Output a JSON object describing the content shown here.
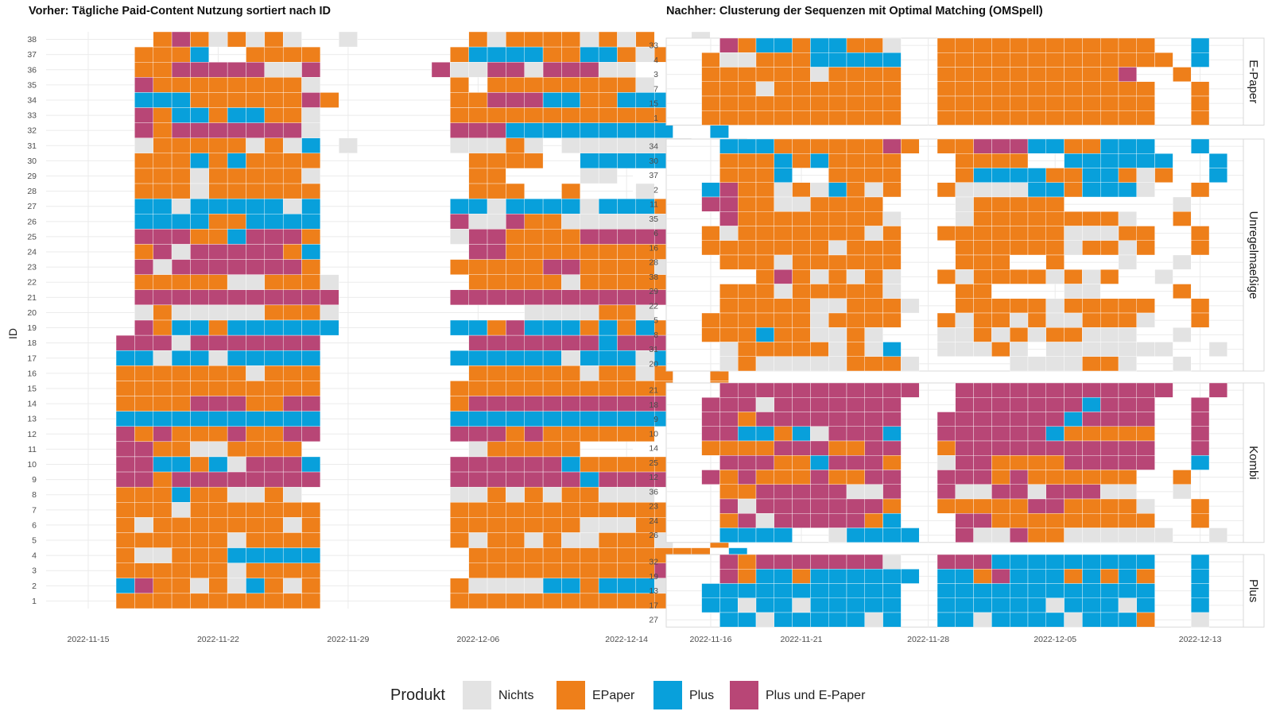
{
  "colors": {
    "nichts": "#e3e3e3",
    "epaper": "#ee7f1a",
    "plus": "#08a0db",
    "kombi": "#b84676",
    "grid": "#ebebeb",
    "panel_border": "#d9d9d9"
  },
  "legend": {
    "title": "Produkt",
    "items": [
      {
        "label": "Nichts",
        "code": "N"
      },
      {
        "label": "EPaper",
        "code": "E"
      },
      {
        "label": "Plus",
        "code": "P"
      },
      {
        "label": "Plus und E-Paper",
        "code": "K"
      }
    ]
  },
  "chart_data": [
    {
      "type": "heatmap",
      "title": "Vorher: Tägliche Paid-Content Nutzung sortiert nach ID",
      "xlabel": "",
      "ylabel": "ID",
      "x_ticks": [
        "2022-11-15",
        "2022-11-22",
        "2022-11-29",
        "2022-12-06",
        "2022-12-14"
      ],
      "x_tick_days": [
        0,
        7,
        14,
        21,
        29
      ],
      "x_range_days": [
        0,
        29
      ],
      "start_day": 0,
      "legend_placement": "bottom",
      "grid": true,
      "encoding": "one character per day from 2022-11-15; N=Nichts, E=EPaper, P=Plus, K=Plus und E-Paper, space=keine Daten",
      "rows": [
        {
          "id": "38",
          "seq": "    EKENENEN  N      ENEEEENENE  N"
        },
        {
          "id": "37",
          "seq": "   EEEP  EEEE       EPPPPEEPPENE  P"
        },
        {
          "id": "36",
          "seq": "   EEKKKKKNNK      KNNKKNKKKNN  N"
        },
        {
          "id": "35",
          "seq": "   KEEEEEEEEN       E EEEEEEEEN  E"
        },
        {
          "id": "34",
          "seq": "   PPPEEEEEEKE      EEKKKPPEEPPP  P"
        },
        {
          "id": "33",
          "seq": "   KEPPEPPEEN       EEEEEEEEEEEE  P"
        },
        {
          "id": "32",
          "seq": "   KEKKKKKKKN       KKKPPPPPPPPP  P"
        },
        {
          "id": "31",
          "seq": "   NEEEEENENP N     NNNEN NNNNNNN  N"
        },
        {
          "id": "30",
          "seq": "   EEEPEPEEEE        EEEE  PPPPPP  P"
        },
        {
          "id": "29",
          "seq": "   EEENEEEEEN        EE    NN    "
        },
        {
          "id": "28",
          "seq": "   EEENEEEEEE        EEE  E   N "
        },
        {
          "id": "27",
          "seq": "   PPNPPPPPNP       PPNPPPPNPPPE  N"
        },
        {
          "id": "26",
          "seq": "   PPPPEEPPPP       KNNKEENNNNNN "
        },
        {
          "id": "25",
          "seq": "   KKKEEPKKKE       NKKEEEEKKKKK  P"
        },
        {
          "id": "24",
          "seq": "   EKNKKKKKEP        KKEEEEEEEEE  E"
        },
        {
          "id": "23",
          "seq": "   KNKKKKKKKE       EEEEEKKEEEEN  E"
        },
        {
          "id": "22",
          "seq": "   EEEEENNEEEN       EEEEENEEEEE  E"
        },
        {
          "id": "21",
          "seq": "   KKKKKKKKKKK      KKKKKKKKKKKK  K"
        },
        {
          "id": "20",
          "seq": "   NENNNNNEEEN          NNNNEEN "
        },
        {
          "id": "19",
          "seq": "   KEPPEPPPPPP      PPEKPPPEPEPE  P"
        },
        {
          "id": "18",
          "seq": "  KKKNKKKKKKK        KKKKKKKPKKK  K"
        },
        {
          "id": "17",
          "seq": "  PPNPPNPPPPP       PPPPPPNPPPNP  P"
        },
        {
          "id": "16",
          "seq": "  EEEEEEENEEE        EEEEEENEENE  E"
        },
        {
          "id": "15",
          "seq": "  EEEEEEEEEEE       EEEEEEEEEEEE  E"
        },
        {
          "id": "14",
          "seq": "  EEEEKKKEEKK       EKKKKKKKKKKK  K"
        },
        {
          "id": "13",
          "seq": "  PPPPPPPPPPP       PPPPPPPPPPPP  P"
        },
        {
          "id": "12",
          "seq": "  KEKEEEKEEKK       KKKEKEEEEEE  E"
        },
        {
          "id": "11",
          "seq": "  KKEENNEEEE         NEEEEE      "
        },
        {
          "id": "10",
          "seq": "  KKPPEPNKKKP       KKKKKKPEEEEE  K"
        },
        {
          "id": "9",
          "seq": "  KKEKKKKKKKK       KKKKKKKPKKKK  K"
        },
        {
          "id": "8",
          "seq": "  EEEPEENNEN        NNENENEENNN  E"
        },
        {
          "id": "7",
          "seq": "  EEENEEEEEEE       EEEEEEEEEEEE  E"
        },
        {
          "id": "6",
          "seq": "  ENEEEEEEENE       EEEEEEENNNEE  E"
        },
        {
          "id": "5",
          "seq": "  EEEEEENEEEE       ENEENENNEEEN  E"
        },
        {
          "id": "4",
          "seq": "  ENNEEEPPPPP        EEEEEEEEEEEEE P"
        },
        {
          "id": "3",
          "seq": "  EEEEEENEEEE        EEEEEEEEEEK  E"
        },
        {
          "id": "2",
          "seq": "  PKEENENPENE       ENNNNPPEPPPN  E"
        },
        {
          "id": "1",
          "seq": "  EEEEEEEEEEE       EEEEEEEEEEEE  E"
        }
      ]
    },
    {
      "type": "heatmap",
      "title": "Nachher: Clusterung der Sequenzen mit Optimal Matching (OMSpell)",
      "xlabel": "",
      "ylabel": "",
      "x_ticks": [
        "2022-11-16",
        "2022-11-21",
        "2022-11-28",
        "2022-12-05",
        "2022-12-13"
      ],
      "x_tick_days": [
        1,
        6,
        13,
        20,
        28
      ],
      "x_range_days": [
        1,
        28
      ],
      "start_day": 1,
      "legend_placement": "bottom",
      "grid": true,
      "encoding": "one character per day from 2022-11-16; N=Nichts, E=EPaper, P=Plus, K=Plus und E-Paper, space=keine Daten",
      "facets": [
        {
          "label": "E-Paper",
          "rows": [
            {
              "id": "33",
              "seq": " KEPPEPPEEN  EEEEEEEEEEEE  P"
            },
            {
              "id": "4",
              "seq": "ENNEEEPPPPP  EEEEEEEEEEEEE P"
            },
            {
              "id": "3",
              "seq": "EEEEEENEEEE  EEEEEEEEEEK  E"
            },
            {
              "id": "7",
              "seq": "EEENEEEEEEE  EEEEEEEEEEEE  E"
            },
            {
              "id": "15",
              "seq": "EEEEEEEEEEE  EEEEEEEEEEEE  E"
            },
            {
              "id": "1",
              "seq": "EEEEEEEEEEE  EEEEEEEEEEEE  E"
            }
          ]
        },
        {
          "label": "Unregelmaeßige",
          "rows": [
            {
              "id": "34",
              "seq": " PPPEEEEEEKE EEKKKPPEEPPP  P"
            },
            {
              "id": "30",
              "seq": " EEEPEPEEEE   EEEE  PPPPPP  P"
            },
            {
              "id": "37",
              "seq": " EEEP  EEEE   EPPPPEEPPENE  P"
            },
            {
              "id": "2",
              "seq": "PKEENENPENE  ENNNNPPEPPPN  E"
            },
            {
              "id": "11",
              "seq": "KKEENNEEEE    NEEEEE      N"
            },
            {
              "id": "35",
              "seq": " KEEEEEEEEN   NEEEEEEEEN  E"
            },
            {
              "id": "6",
              "seq": "ENEEEEEEENE  EEEEEEENNNEE  E"
            },
            {
              "id": "16",
              "seq": "EEEEEEENEEE   EEEEEENEENE  E"
            },
            {
              "id": "28",
              "seq": " EEENEEEEEE   EEE  E   N  N"
            },
            {
              "id": "38",
              "seq": "   EKENENEN  ENEEEENENE  N"
            },
            {
              "id": "29",
              "seq": " EEENEEEEEN   EE    NN    E"
            },
            {
              "id": "22",
              "seq": " EEEEENNEEEN  EEEEENEEEEE  E"
            },
            {
              "id": "5",
              "seq": "EEEEEENEEEE  ENEENENNEEEN  E"
            },
            {
              "id": "8",
              "seq": "EEEPEENNEN   NNENENEENNN  N"
            },
            {
              "id": "31",
              "seq": " NEEEEENENP  NNNEN NNNNNNN  N"
            },
            {
              "id": "20",
              "seq": " NENNNNNEEEN     NNNNEEN  N"
            }
          ]
        },
        {
          "label": "Kombi",
          "rows": [
            {
              "id": "21",
              "seq": " KKKKKKKKKKK  KKKKKKKKKKKK  K"
            },
            {
              "id": "18",
              "seq": "KKKNKKKKKKK   KKKKKKKPKKK  K"
            },
            {
              "id": "9",
              "seq": "KKEKKKKKKKK  KKKKKKKPKKKK  K"
            },
            {
              "id": "10",
              "seq": "KKPPEPNKKKP  KKKKKKPEEEEE  K"
            },
            {
              "id": "14",
              "seq": "EEEEKKKEEKK  EKKKKKKKKKKK  K"
            },
            {
              "id": "25",
              "seq": " KKKEEPKKKE  NKKEEEEKKKKK  P"
            },
            {
              "id": "12",
              "seq": "KEKEEEKEEKK  KKKEKEEEEEE  E"
            },
            {
              "id": "36",
              "seq": " EEKKKKKNNK  KNNKKNKKKNN  N"
            },
            {
              "id": "23",
              "seq": " KNKKKKKKKE  EEEEEKKEEEEN  E"
            },
            {
              "id": "24",
              "seq": " EKNKKKKKEP   KKEEEEEEEEE  E"
            },
            {
              "id": "26",
              "seq": " PPPP  NPPPP  KNNKEENNNNNN  N"
            }
          ]
        },
        {
          "label": "Plus",
          "rows": [
            {
              "id": "32",
              "seq": " KEKKKKKKKN  KKKPPPPPPPPP  P"
            },
            {
              "id": "19",
              "seq": " KEPPEPPPPPP PPEKPPPEPEPE  P"
            },
            {
              "id": "13",
              "seq": "PPPPPPPPPPP  PPPPPPPPPPPP  P"
            },
            {
              "id": "17",
              "seq": "PPNPPNPPPPP  PPPPPPNPPPNP  P"
            },
            {
              "id": "27",
              "seq": " PPNPPPPPNP  PPNPPPPNPPPE  N"
            }
          ]
        }
      ]
    }
  ]
}
